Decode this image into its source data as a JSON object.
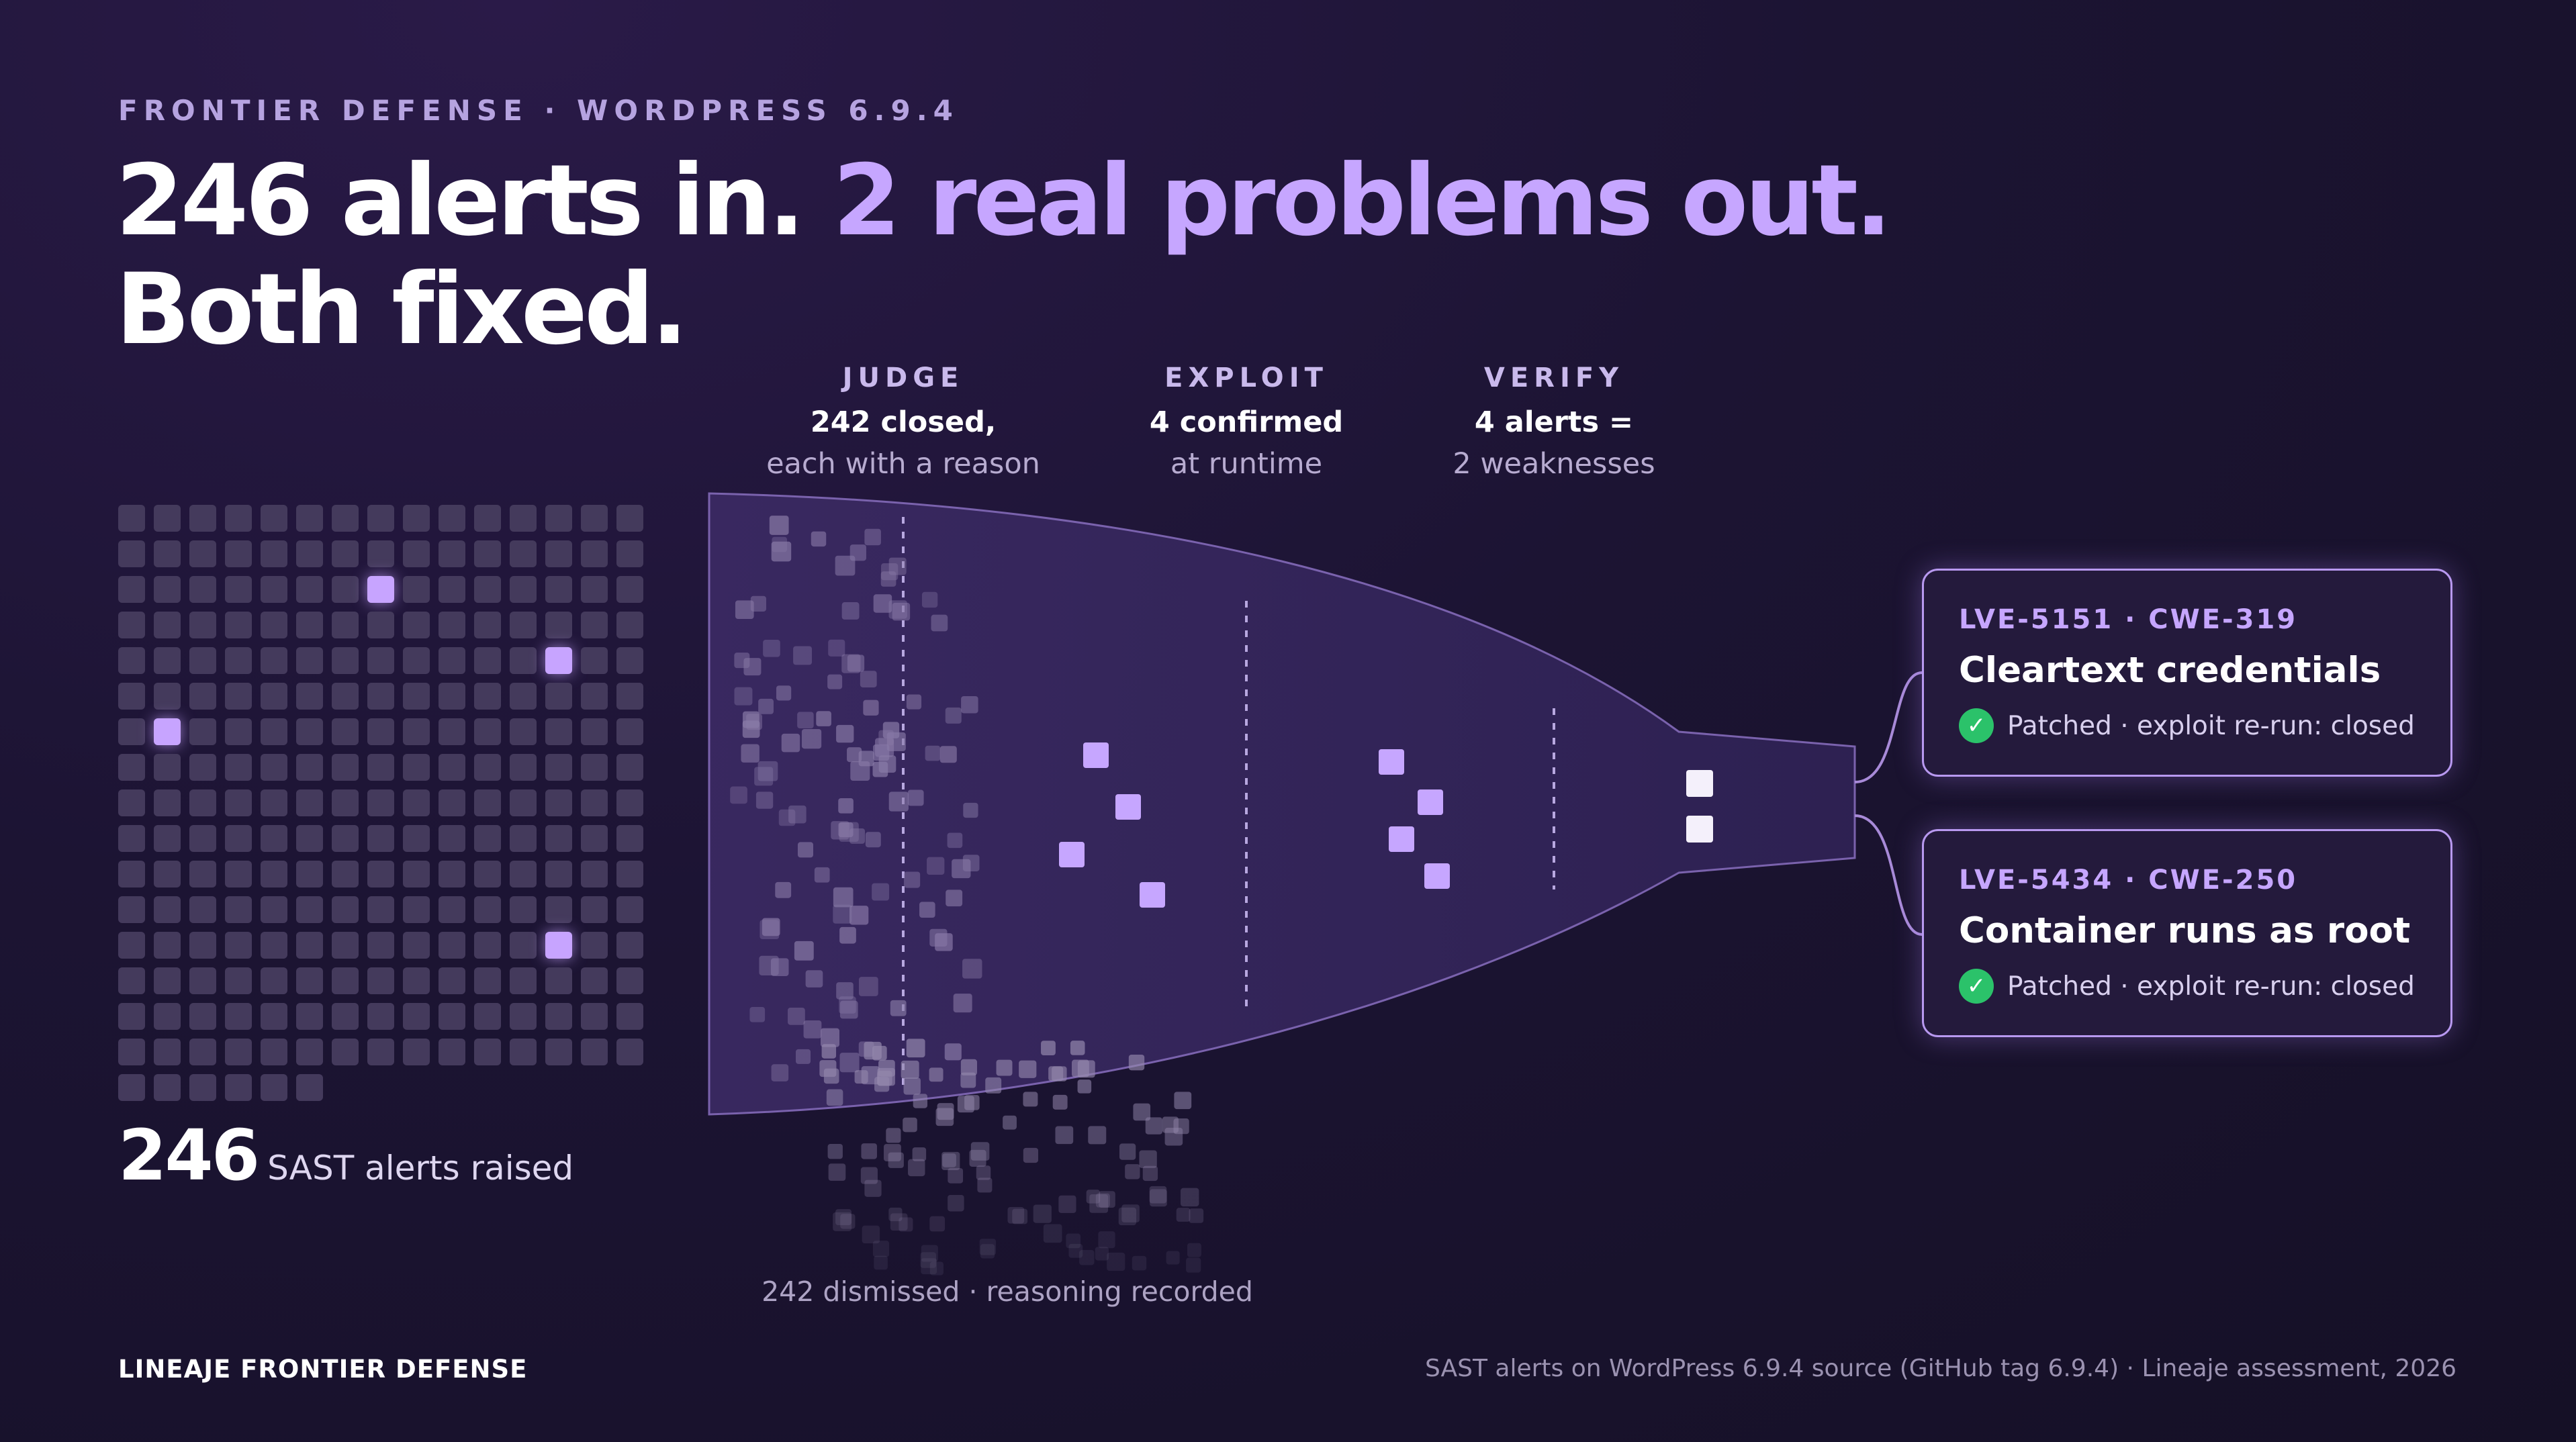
{
  "header": {
    "eyebrow": "FRONTIER DEFENSE · WORDPRESS 6.9.4",
    "headline_part1": "246 alerts in. ",
    "headline_accent": "2 real problems out.",
    "headline_part2": "Both fixed."
  },
  "stages": [
    {
      "label": "JUDGE",
      "main": "242 closed,",
      "sub": "each with a reason"
    },
    {
      "label": "EXPLOIT",
      "main": "4 confirmed",
      "sub": "at runtime"
    },
    {
      "label": "VERIFY",
      "main": "4 alerts =",
      "sub": "2 weaknesses"
    }
  ],
  "alerts": {
    "count": "246",
    "label": "SAST alerts raised",
    "total": 246,
    "highlighted": 4
  },
  "funnel": {
    "dismissed_caption": "242 dismissed · reasoning recorded",
    "dismissed_count": 242,
    "confirmed_count": 4,
    "weaknesses_count": 2
  },
  "findings": [
    {
      "id": "LVE-5151 · CWE-319",
      "title": "Cleartext credentials",
      "status": "Patched · exploit re-run: closed",
      "status_icon": "check-circle-icon"
    },
    {
      "id": "LVE-5434 · CWE-250",
      "title": "Container runs as root",
      "status": "Patched · exploit re-run: closed",
      "status_icon": "check-circle-icon"
    }
  ],
  "footer": {
    "brand": "LINEAJE FRONTIER DEFENSE",
    "source": "SAST alerts on WordPress 6.9.4 source (GitHub tag 6.9.4) · Lineaje assessment, 2026"
  },
  "colors": {
    "accent": "#c6a6ff",
    "background": "#1c1433",
    "success": "#2bc26a",
    "cell": "#443a5c"
  }
}
